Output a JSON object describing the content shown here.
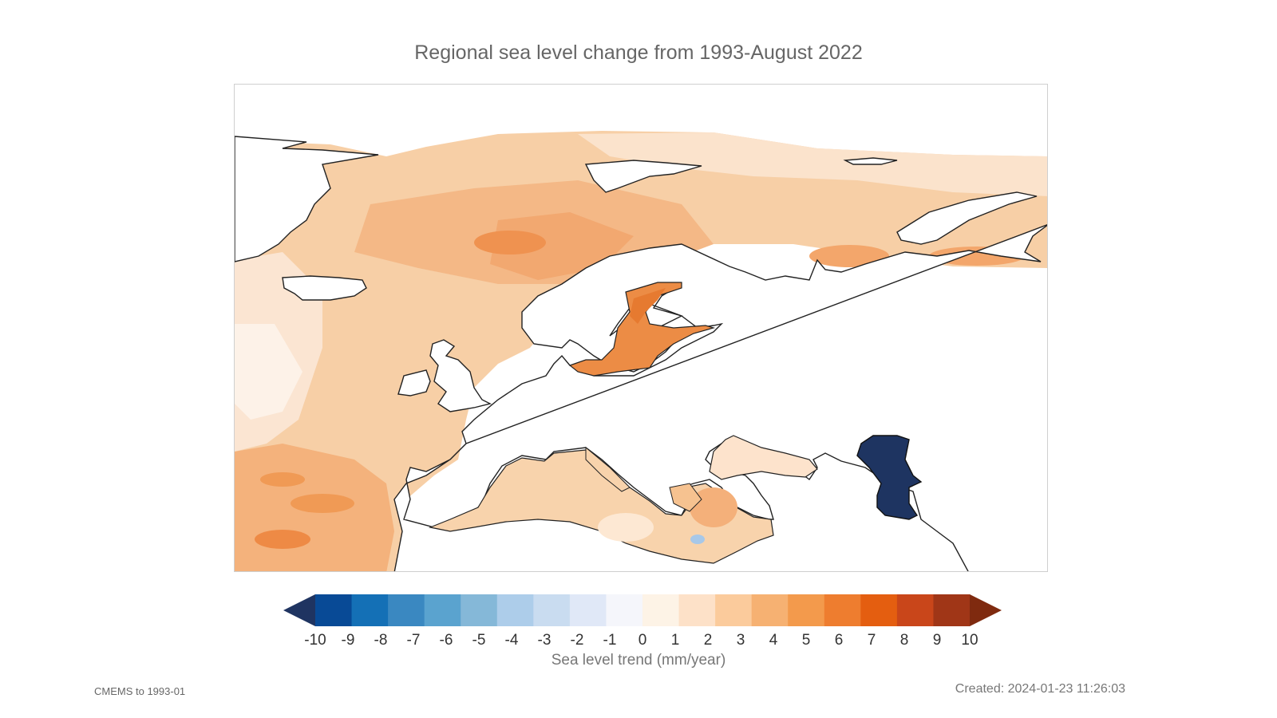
{
  "title": "Regional sea level change from 1993-August 2022",
  "legend": {
    "label": "Sea level trend (mm/year)",
    "ticks": [
      "-10",
      "-9",
      "-8",
      "-7",
      "-6",
      "-5",
      "-4",
      "-3",
      "-2",
      "-1",
      "0",
      "1",
      "2",
      "3",
      "4",
      "5",
      "6",
      "7",
      "8",
      "9",
      "10"
    ],
    "colors": [
      "#1f3461",
      "#084a96",
      "#1470b6",
      "#3a88c1",
      "#5aa3cf",
      "#85b8d8",
      "#adcdea",
      "#c9dcf0",
      "#e0e8f7",
      "#f5f6fb",
      "#fdf3e6",
      "#fde1c8",
      "#fbcb9c",
      "#f6b172",
      "#f39a4c",
      "#ee7d2f",
      "#e45e10",
      "#c9461a",
      "#a03617",
      "#7f2a0f"
    ]
  },
  "regions": {
    "caspian_color": "#1e3461",
    "ocean_colors": [
      "#fbe6d3",
      "#f9d4b0",
      "#f5bd8a",
      "#f1a062",
      "#ec8436",
      "#fcf1e8"
    ]
  },
  "source": "CMEMS to 1993-01",
  "created": "Created: 2024-01-23 11:26:03"
}
